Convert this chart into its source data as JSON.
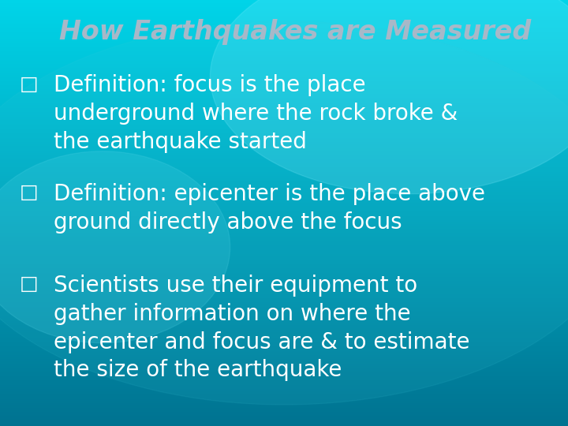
{
  "title": "How Earthquakes are Measured",
  "title_color": "#a8b8c8",
  "title_fontsize": 24,
  "title_style": "italic",
  "title_weight": "bold",
  "bullet_char": "□",
  "bullet_color": "#ffffff",
  "bullet_fontsize": 18,
  "text_color": "#ffffff",
  "text_fontsize": 20,
  "bullets": [
    "Definition: focus is the place\nunderground where the rock broke &\nthe earthquake started",
    "Definition: epicenter is the place above\nground directly above the focus",
    "Scientists use their equipment to\ngather information on where the\nepicenter and focus are & to estimate\nthe size of the earthquake"
  ],
  "bg_top": "#00cce0",
  "bg_bottom": "#007a9a",
  "fig_width": 7.2,
  "fig_height": 5.4,
  "dpi": 100
}
